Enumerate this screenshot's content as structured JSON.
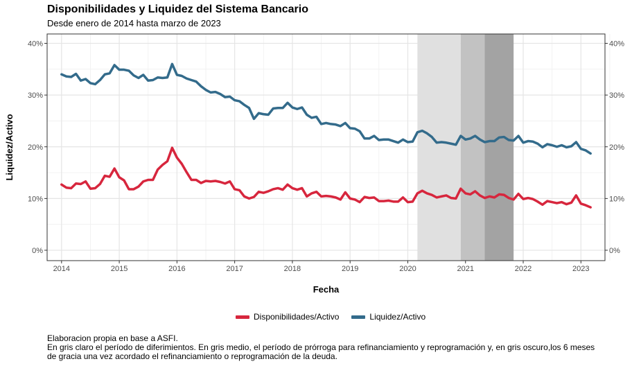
{
  "title": "Disponibilidades y Liquidez del Sistema Bancario",
  "subtitle": "Desde enero de 2014 hasta marzo de 2023",
  "caption": [
    "Elaboracion propia en base a ASFI.",
    "En gris claro el período de diferimientos. En gris medio, el período de prórroga para refinanciamiento y reprogramación y, en gris oscuro,los 6 meses",
    "de gracia una vez acordado el refinanciamiento o reprogramación de la deuda."
  ],
  "colors": {
    "disponibilidades": "#d7263d",
    "liquidez": "#336b8b",
    "band_light": "#e0e0e0",
    "band_mid": "#c2c2c2",
    "band_dark": "#a3a3a3"
  },
  "chart_data": {
    "type": "line",
    "title": "Disponibilidades y Liquidez del Sistema Bancario",
    "subtitle": "Desde enero de 2014 hasta marzo de 2023",
    "xlabel": "Fecha",
    "ylabel": "Liquidez/Activo",
    "x_ticks": [
      "2014",
      "2015",
      "2016",
      "2017",
      "2018",
      "2019",
      "2020",
      "2021",
      "2022",
      "2023"
    ],
    "y_ticks": [
      "0%",
      "10%",
      "20%",
      "30%",
      "40%"
    ],
    "ylim": [
      0,
      0.4
    ],
    "xlim": [
      "2013-10",
      "2023-06"
    ],
    "grid": true,
    "legend_position": "bottom",
    "x_start": "2014-01",
    "x_frequency": "monthly",
    "shaded_periods": [
      {
        "start": "2020-03",
        "end": "2020-12",
        "shade": "light"
      },
      {
        "start": "2020-12",
        "end": "2021-05",
        "shade": "mid"
      },
      {
        "start": "2021-05",
        "end": "2021-11",
        "shade": "dark"
      }
    ],
    "series": [
      {
        "name": "Disponibilidades/Activo",
        "color": "#d7263d",
        "values": [
          0.127,
          0.121,
          0.12,
          0.129,
          0.128,
          0.133,
          0.119,
          0.12,
          0.128,
          0.144,
          0.142,
          0.158,
          0.141,
          0.135,
          0.118,
          0.118,
          0.123,
          0.133,
          0.136,
          0.136,
          0.156,
          0.165,
          0.172,
          0.198,
          0.179,
          0.167,
          0.151,
          0.136,
          0.136,
          0.13,
          0.134,
          0.133,
          0.134,
          0.132,
          0.129,
          0.133,
          0.118,
          0.116,
          0.104,
          0.1,
          0.103,
          0.113,
          0.111,
          0.114,
          0.118,
          0.12,
          0.117,
          0.127,
          0.12,
          0.117,
          0.12,
          0.104,
          0.11,
          0.113,
          0.104,
          0.105,
          0.104,
          0.102,
          0.098,
          0.112,
          0.1,
          0.098,
          0.093,
          0.103,
          0.101,
          0.102,
          0.095,
          0.095,
          0.096,
          0.094,
          0.094,
          0.102,
          0.093,
          0.094,
          0.11,
          0.115,
          0.11,
          0.107,
          0.102,
          0.104,
          0.106,
          0.101,
          0.1,
          0.119,
          0.11,
          0.108,
          0.114,
          0.106,
          0.101,
          0.104,
          0.102,
          0.108,
          0.107,
          0.101,
          0.098,
          0.109,
          0.099,
          0.101,
          0.099,
          0.094,
          0.088,
          0.095,
          0.093,
          0.091,
          0.093,
          0.089,
          0.092,
          0.106,
          0.09,
          0.087,
          0.083
        ]
      },
      {
        "name": "Liquidez/Activo",
        "color": "#336b8b",
        "values": [
          0.34,
          0.336,
          0.335,
          0.341,
          0.328,
          0.331,
          0.323,
          0.321,
          0.329,
          0.34,
          0.342,
          0.358,
          0.349,
          0.349,
          0.347,
          0.338,
          0.333,
          0.339,
          0.328,
          0.329,
          0.334,
          0.333,
          0.334,
          0.36,
          0.339,
          0.337,
          0.332,
          0.329,
          0.326,
          0.317,
          0.31,
          0.305,
          0.306,
          0.302,
          0.296,
          0.297,
          0.29,
          0.288,
          0.281,
          0.275,
          0.254,
          0.265,
          0.263,
          0.262,
          0.274,
          0.275,
          0.275,
          0.285,
          0.276,
          0.273,
          0.276,
          0.262,
          0.256,
          0.258,
          0.244,
          0.246,
          0.244,
          0.243,
          0.24,
          0.246,
          0.236,
          0.235,
          0.23,
          0.216,
          0.216,
          0.221,
          0.213,
          0.214,
          0.214,
          0.211,
          0.208,
          0.214,
          0.209,
          0.21,
          0.228,
          0.231,
          0.226,
          0.219,
          0.208,
          0.209,
          0.208,
          0.206,
          0.204,
          0.221,
          0.214,
          0.216,
          0.221,
          0.214,
          0.209,
          0.211,
          0.211,
          0.218,
          0.219,
          0.213,
          0.212,
          0.221,
          0.208,
          0.211,
          0.21,
          0.206,
          0.199,
          0.205,
          0.203,
          0.2,
          0.203,
          0.199,
          0.201,
          0.209,
          0.196,
          0.193,
          0.187
        ]
      }
    ]
  }
}
